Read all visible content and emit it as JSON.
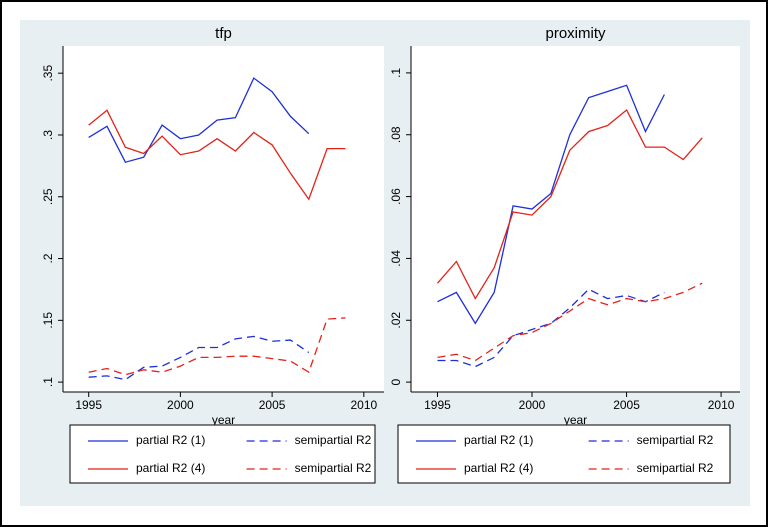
{
  "chart_data": [
    {
      "type": "line",
      "title": "tfp",
      "x_label": "year",
      "x": [
        1995,
        1996,
        1997,
        1998,
        1999,
        2000,
        2001,
        2002,
        2003,
        2004,
        2005,
        2006,
        2007,
        2008,
        2009
      ],
      "series": [
        {
          "name": "partial R2 (1)",
          "color": "#1f2fd8",
          "dash": false,
          "values": [
            0.298,
            0.307,
            0.278,
            0.282,
            0.308,
            0.297,
            0.3,
            0.312,
            0.314,
            0.346,
            0.335,
            0.315,
            0.301,
            null,
            null
          ]
        },
        {
          "name": "semipartial R2",
          "color": "#1f2fd8",
          "dash": true,
          "values": [
            0.104,
            0.105,
            0.102,
            0.112,
            0.113,
            0.12,
            0.128,
            0.128,
            0.135,
            0.137,
            0.133,
            0.134,
            0.124,
            null,
            null
          ]
        },
        {
          "name": "partial R2 (4)",
          "color": "#e2231a",
          "dash": false,
          "values": [
            0.308,
            0.32,
            0.29,
            0.285,
            0.299,
            0.284,
            0.287,
            0.297,
            0.287,
            0.302,
            0.292,
            0.269,
            0.248,
            0.289,
            0.289
          ]
        },
        {
          "name": "semipartial R2",
          "color": "#e2231a",
          "dash": true,
          "values": [
            0.108,
            0.111,
            0.106,
            0.11,
            0.108,
            0.113,
            0.12,
            0.12,
            0.121,
            0.121,
            0.119,
            0.117,
            0.108,
            0.151,
            0.152
          ]
        }
      ],
      "xlim": [
        1993.6,
        2011.1
      ],
      "xticks": [
        1995,
        2000,
        2005,
        2010
      ],
      "ylim": [
        0.092,
        0.372
      ],
      "yticks": [
        {
          "value": 0.1,
          "label": ".1"
        },
        {
          "value": 0.15,
          "label": ".15"
        },
        {
          "value": 0.2,
          "label": ".2"
        },
        {
          "value": 0.25,
          "label": ".25"
        },
        {
          "value": 0.3,
          "label": ".3"
        },
        {
          "value": 0.35,
          "label": ".35"
        }
      ]
    },
    {
      "type": "line",
      "title": "proximity",
      "x_label": "year",
      "x": [
        1995,
        1996,
        1997,
        1998,
        1999,
        2000,
        2001,
        2002,
        2003,
        2004,
        2005,
        2006,
        2007,
        2008,
        2009
      ],
      "series": [
        {
          "name": "partial R2 (1)",
          "color": "#1f2fd8",
          "dash": false,
          "values": [
            0.026,
            0.029,
            0.019,
            0.029,
            0.057,
            0.056,
            0.061,
            0.08,
            0.092,
            0.094,
            0.096,
            0.081,
            0.093,
            null,
            null
          ]
        },
        {
          "name": "semipartial R2",
          "color": "#1f2fd8",
          "dash": true,
          "values": [
            0.007,
            0.007,
            0.005,
            0.008,
            0.015,
            0.017,
            0.019,
            0.024,
            0.03,
            0.027,
            0.028,
            0.026,
            0.029,
            null,
            null
          ]
        },
        {
          "name": "partial R2 (4)",
          "color": "#e2231a",
          "dash": false,
          "values": [
            0.032,
            0.039,
            0.027,
            0.037,
            0.055,
            0.054,
            0.06,
            0.075,
            0.081,
            0.083,
            0.088,
            0.076,
            0.076,
            0.072,
            0.079
          ]
        },
        {
          "name": "semipartial R2",
          "color": "#e2231a",
          "dash": true,
          "values": [
            0.008,
            0.009,
            0.007,
            0.011,
            0.015,
            0.016,
            0.019,
            0.023,
            0.027,
            0.025,
            0.027,
            0.026,
            0.027,
            0.029,
            0.032
          ]
        }
      ],
      "xlim": [
        1993.6,
        2011.0
      ],
      "xticks": [
        1995,
        2000,
        2005,
        2010
      ],
      "ylim": [
        -0.0032,
        0.1087
      ],
      "yticks": [
        0,
        {
          "value": 0.02,
          "label": ".02"
        },
        {
          "value": 0.04,
          "label": ".04"
        },
        {
          "value": 0.06,
          "label": ".06"
        },
        {
          "value": 0.08,
          "label": ".08"
        },
        {
          "value": 0.1,
          "label": ".1"
        }
      ]
    }
  ]
}
